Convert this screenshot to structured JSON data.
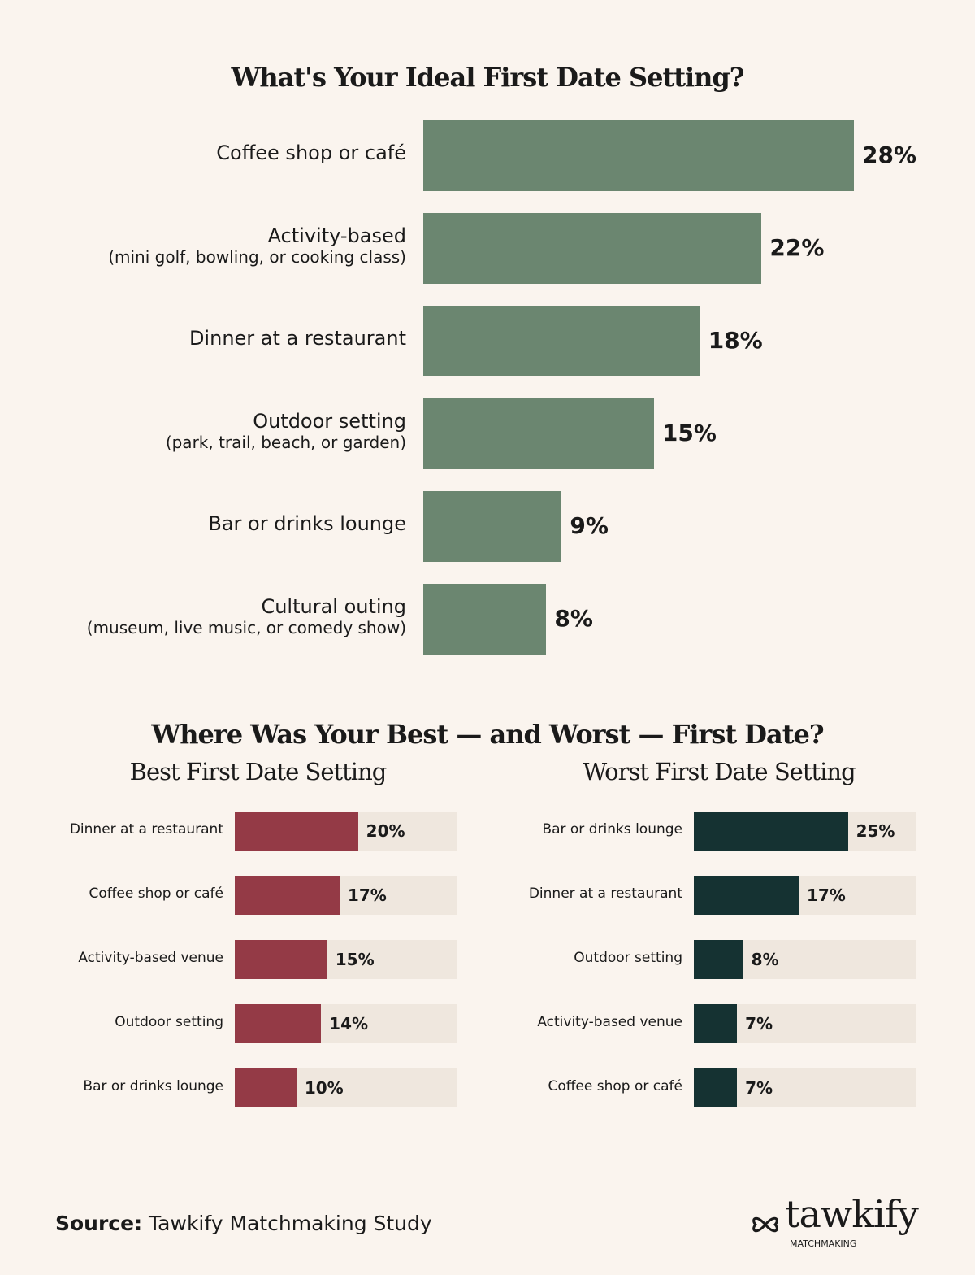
{
  "chart_data": [
    {
      "type": "bar",
      "orientation": "horizontal",
      "title": "What's Your Ideal First Date Setting?",
      "categories": [
        [
          "Coffee shop or café",
          ""
        ],
        [
          "Activity-based",
          "(mini golf, bowling, or cooking class)"
        ],
        [
          "Dinner at a restaurant",
          ""
        ],
        [
          "Outdoor setting",
          "(park, trail, beach, or garden)"
        ],
        [
          "Bar or drinks lounge",
          ""
        ],
        [
          "Cultural outing",
          "(museum, live music, or comedy show)"
        ]
      ],
      "values": [
        28,
        22,
        18,
        15,
        9,
        8
      ],
      "value_labels": [
        "28%",
        "22%",
        "18%",
        "15%",
        "9%",
        "8%"
      ],
      "color": "#6b8670",
      "xlim": [
        0,
        28
      ]
    },
    {
      "type": "bar",
      "orientation": "horizontal",
      "group_title": "Where Was Your Best — and Worst — First Date?",
      "title": "Best First Date Setting",
      "categories": [
        "Dinner at a restaurant",
        "Coffee shop or café",
        "Activity-based venue",
        "Outdoor setting",
        "Bar or drinks lounge"
      ],
      "values": [
        20,
        17,
        15,
        14,
        10
      ],
      "value_labels": [
        "20%",
        "17%",
        "15%",
        "14%",
        "10%"
      ],
      "color": "#943a46",
      "track_color": "#efe7de",
      "xlim": [
        0,
        36
      ]
    },
    {
      "type": "bar",
      "orientation": "horizontal",
      "title": "Worst First Date Setting",
      "categories": [
        "Bar or drinks lounge",
        "Dinner at a restaurant",
        "Outdoor setting",
        "Activity-based venue",
        "Coffee shop or café"
      ],
      "values": [
        25,
        17,
        8,
        7,
        7
      ],
      "value_labels": [
        "25%",
        "17%",
        "8%",
        "7%",
        "7%"
      ],
      "color": "#153232",
      "track_color": "#efe7de",
      "xlim": [
        0,
        36
      ]
    }
  ],
  "footer": {
    "source_label": "Source:",
    "source_text": "Tawkify Matchmaking Study",
    "logo_text": "tawkify",
    "logo_sub": "MATCHMAKING"
  }
}
